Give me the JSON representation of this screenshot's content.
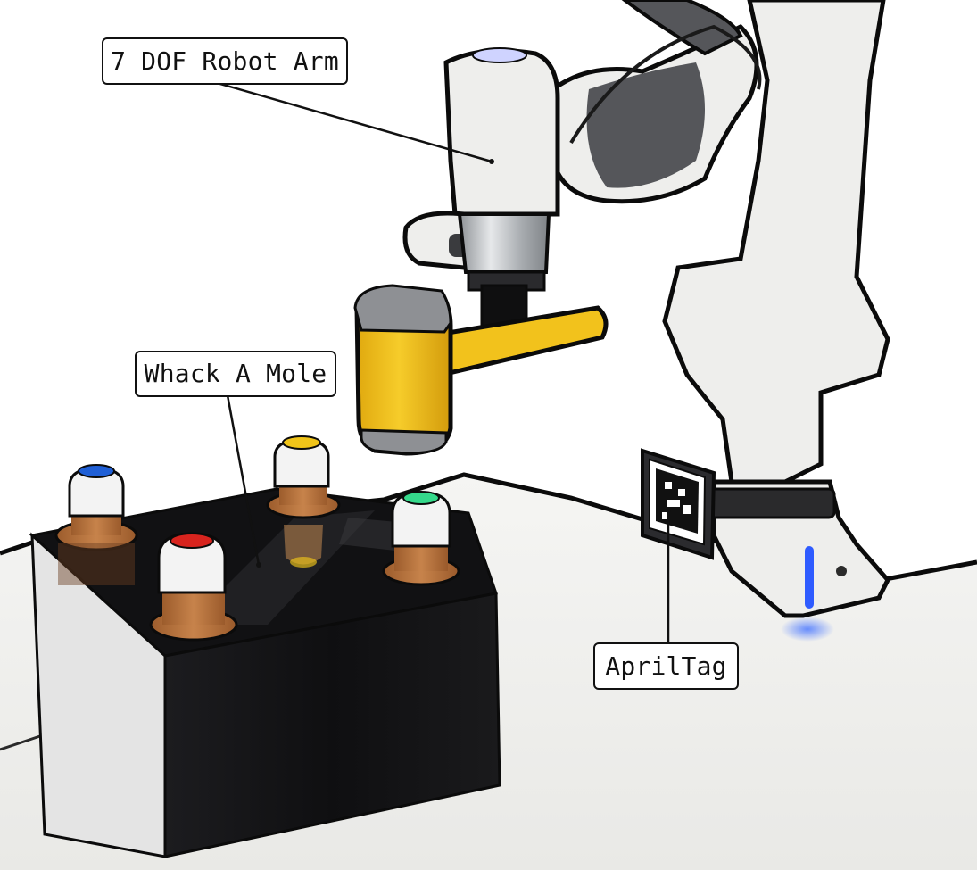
{
  "labels": {
    "robot_arm": "7 DOF Robot Arm",
    "whack_a_mole": "Whack A Mole",
    "april_tag": "AprilTag"
  },
  "colors": {
    "table": "#f2f2f0",
    "table_edge": "#e3e3e0",
    "robot_white": "#eeeeec",
    "robot_joint_dark": "#55565a",
    "flange_silver": "#b9bcc0",
    "hammer_yellow": "#f2c21c",
    "hammer_cap_gray": "#8e9094",
    "box_black": "#151517",
    "mole_wood": "#b9743f",
    "mole_white": "#f3f3f3",
    "button_blue": "#1f5fd6",
    "button_yellow": "#f0c419",
    "button_red": "#d8241e",
    "button_green": "#35d98b",
    "status_led_blue": "#2e5bff",
    "outline": "#0b0b0b"
  }
}
